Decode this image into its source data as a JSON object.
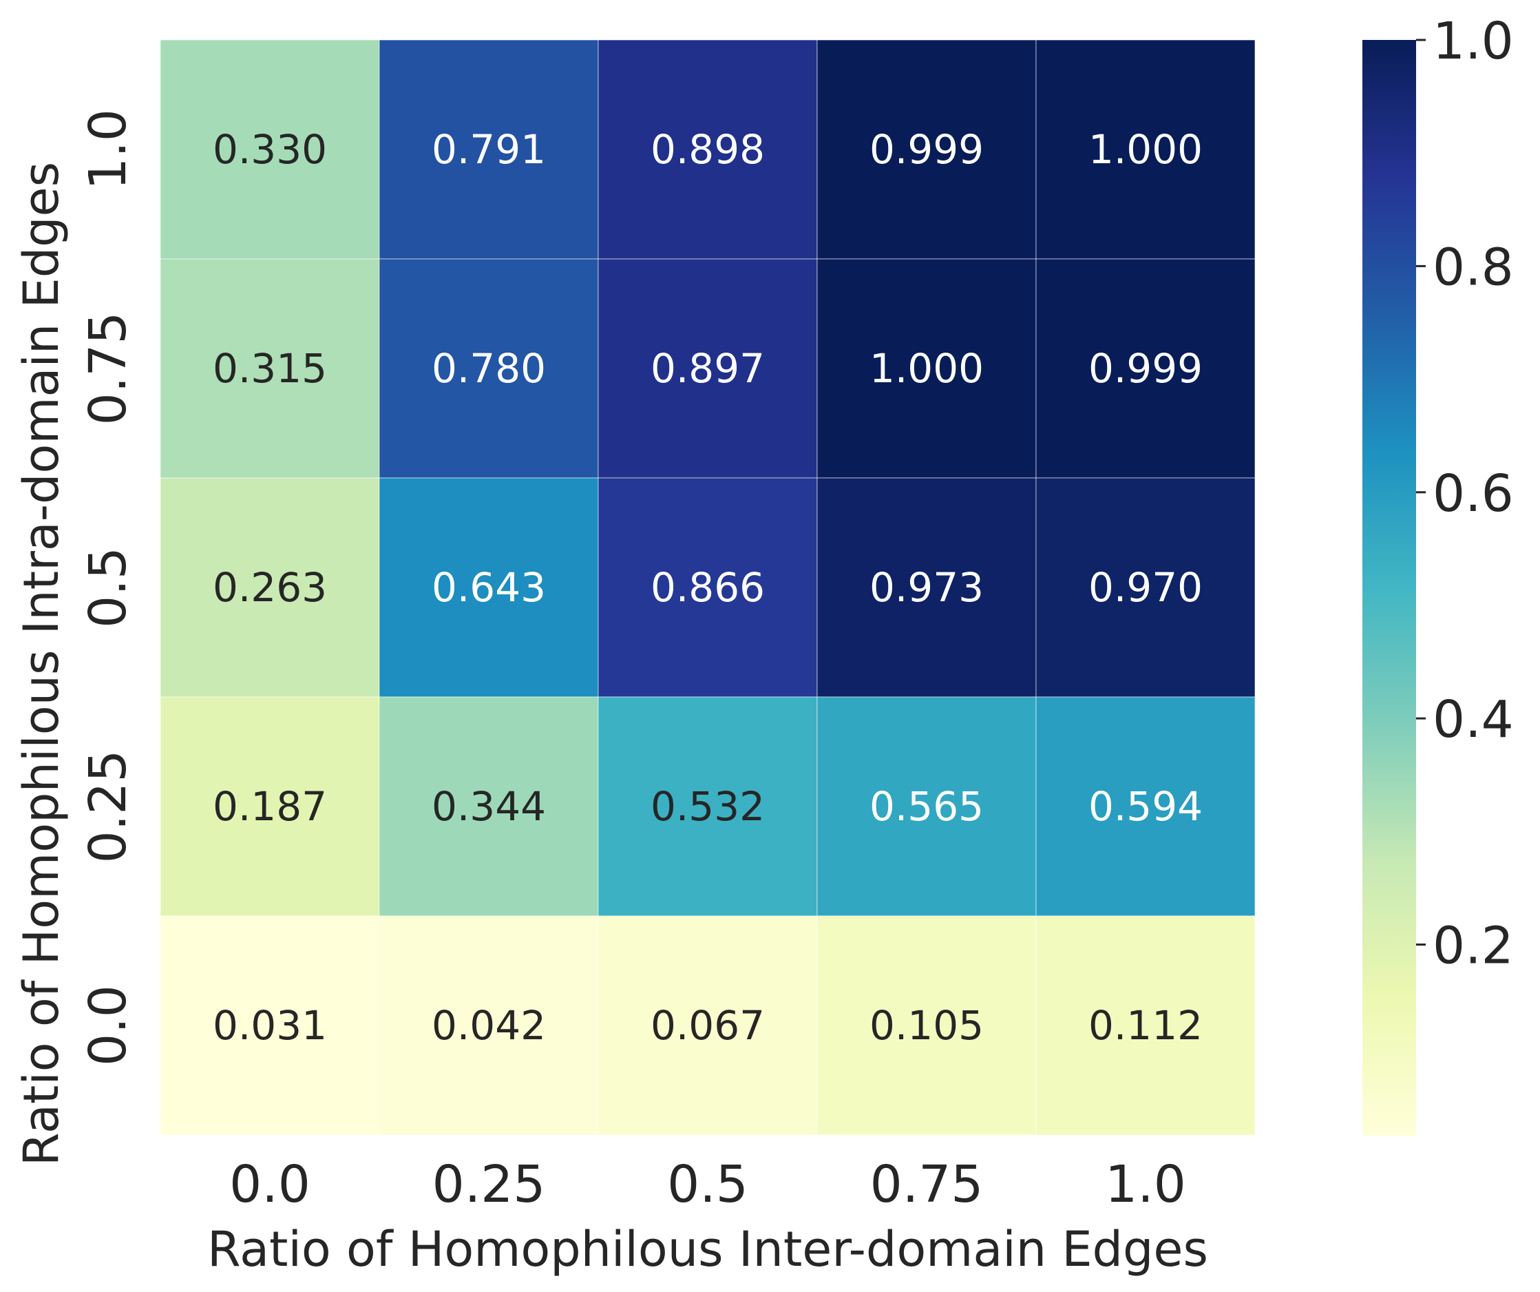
{
  "chart_data": {
    "type": "heatmap",
    "xlabel": "Ratio of Homophilous Inter-domain Edges",
    "ylabel": "Ratio of Homophilous Intra-domain Edges",
    "x_categories": [
      "0.0",
      "0.25",
      "0.5",
      "0.75",
      "1.0"
    ],
    "y_categories": [
      "1.0",
      "0.75",
      "0.5",
      "0.25",
      "0.0"
    ],
    "values": [
      [
        0.33,
        0.791,
        0.898,
        0.999,
        1.0
      ],
      [
        0.315,
        0.78,
        0.897,
        1.0,
        0.999
      ],
      [
        0.263,
        0.643,
        0.866,
        0.973,
        0.97
      ],
      [
        0.187,
        0.344,
        0.532,
        0.565,
        0.594
      ],
      [
        0.031,
        0.042,
        0.067,
        0.105,
        0.112
      ]
    ],
    "cell_labels": [
      [
        "0.330",
        "0.791",
        "0.898",
        "0.999",
        "1.000"
      ],
      [
        "0.315",
        "0.780",
        "0.897",
        "1.000",
        "0.999"
      ],
      [
        "0.263",
        "0.643",
        "0.866",
        "0.973",
        "0.970"
      ],
      [
        "0.187",
        "0.344",
        "0.532",
        "0.565",
        "0.594"
      ],
      [
        "0.031",
        "0.042",
        "0.067",
        "0.105",
        "0.112"
      ]
    ],
    "colormap": "YlGnBu",
    "colorbar": {
      "vmin": 0.031,
      "vmax": 1.0,
      "ticks": [
        0.2,
        0.4,
        0.6,
        0.8,
        1.0
      ],
      "tick_labels": [
        "0.2",
        "0.4",
        "0.6",
        "0.8",
        "1.0"
      ]
    },
    "colors": {
      "dark_text": "#262626",
      "light_text": "#ffffff",
      "colormap_stops": [
        "#ffffd9",
        "#edf8b1",
        "#c7e9b4",
        "#7fcdbb",
        "#41b6c4",
        "#1d91c0",
        "#225ea8",
        "#253494",
        "#081d58"
      ]
    }
  }
}
